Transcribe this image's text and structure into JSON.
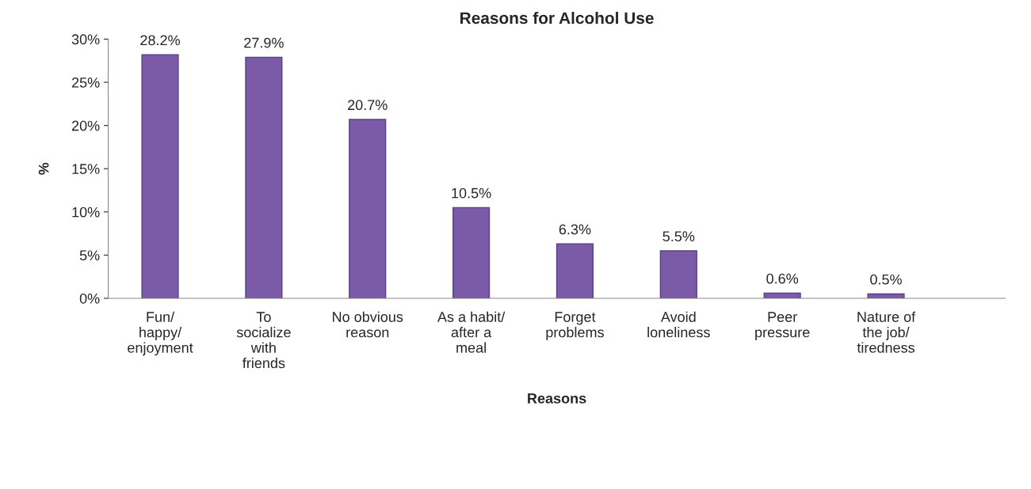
{
  "chart_data": {
    "type": "bar",
    "title": "Reasons for Alcohol Use",
    "xlabel": "Reasons",
    "ylabel": "%",
    "categories": [
      "Fun/\nhappy/\nenjoyment",
      "To\nsocialize\nwith\nfriends",
      "No obvious\nreason",
      "As a habit/\nafter a\nmeal",
      "Forget\nproblems",
      "Avoid\nloneliness",
      "Peer\npressure",
      "Nature of\nthe job/\ntiredness"
    ],
    "values": [
      28.2,
      27.9,
      20.7,
      10.5,
      6.3,
      5.5,
      0.6,
      0.5
    ],
    "value_labels": [
      "28.2%",
      "27.9%",
      "20.7%",
      "10.5%",
      "6.3%",
      "5.5%",
      "0.6%",
      "0.5%"
    ],
    "color": "#7b5ba8",
    "ylim": [
      0,
      30
    ],
    "yticks": [
      {
        "value": 0,
        "label": "0%"
      },
      {
        "value": 5,
        "label": "5%"
      },
      {
        "value": 10,
        "label": "10%"
      },
      {
        "value": 15,
        "label": "15%"
      },
      {
        "value": 20,
        "label": "20%"
      },
      {
        "value": 25,
        "label": "25%"
      },
      {
        "value": 30,
        "label": "30%"
      }
    ]
  }
}
